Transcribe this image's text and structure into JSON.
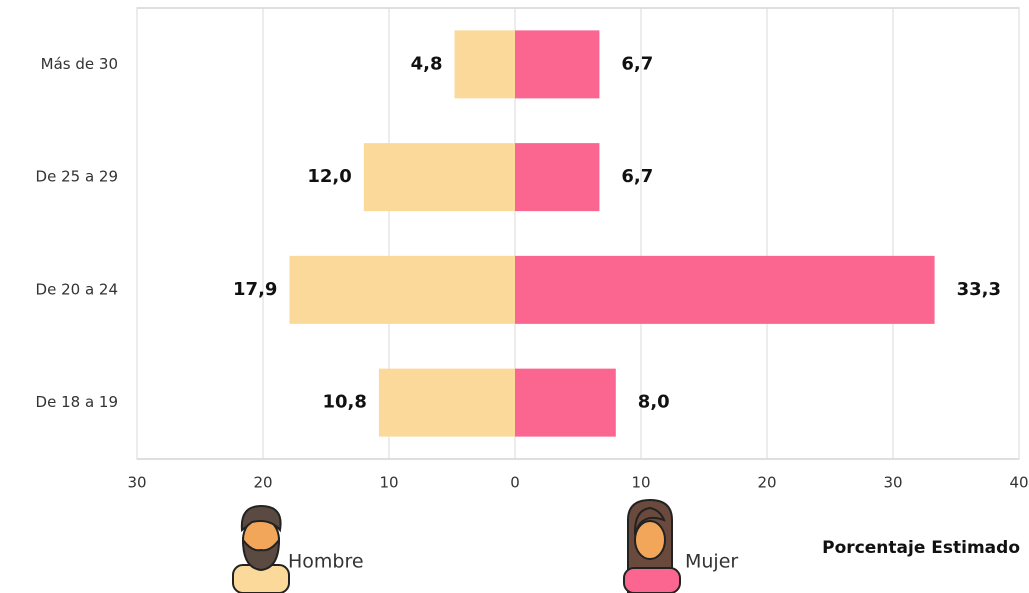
{
  "chart_data": {
    "type": "pyramid",
    "categories": [
      "Más de 30",
      "De 25 a 29",
      "De 20 a 24",
      "De 18 a 19"
    ],
    "series": [
      {
        "name": "Hombre",
        "color": "#fbd99a",
        "values": [
          -4.8,
          -12.0,
          -17.9,
          -10.8
        ],
        "value_labels": [
          "4,8",
          "12,0",
          "17,9",
          "10,8"
        ]
      },
      {
        "name": "Mujer",
        "color": "#fb6691",
        "values": [
          6.7,
          6.7,
          33.3,
          8.0
        ],
        "value_labels": [
          "6,7",
          "6,7",
          "33,3",
          "8,0"
        ]
      }
    ],
    "xlabel": "Porcentaje Estimado",
    "xlim": [
      -30,
      40
    ],
    "xticks": [
      {
        "value": -30,
        "label": "30"
      },
      {
        "value": -20,
        "label": "20"
      },
      {
        "value": -10,
        "label": "10"
      },
      0,
      10,
      20,
      30,
      40
    ],
    "grid": true
  }
}
